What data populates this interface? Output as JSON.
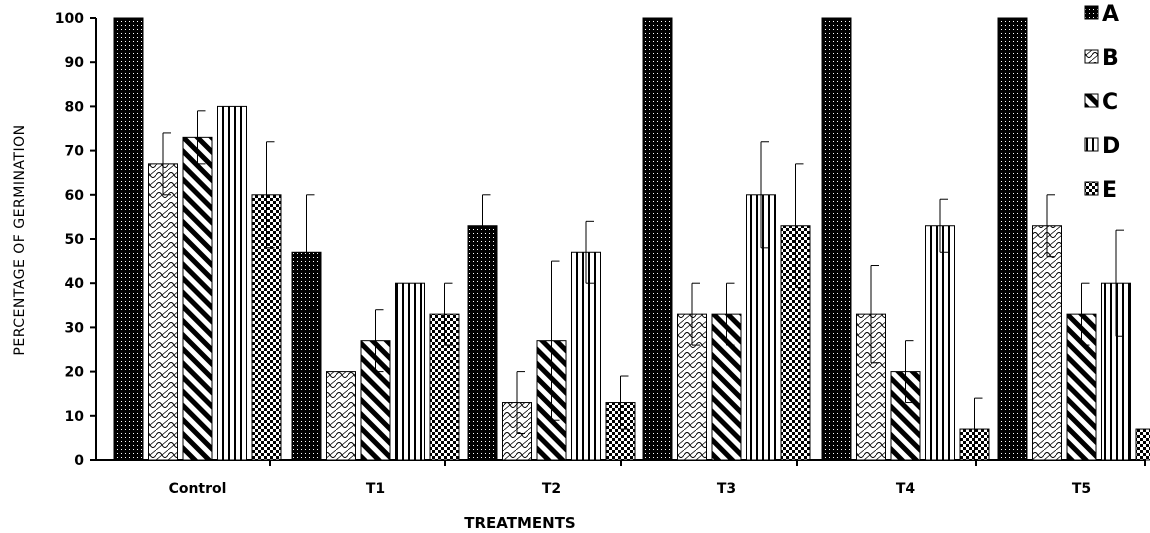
{
  "chart_data": {
    "type": "bar",
    "title": "",
    "xlabel": "TREATMENTS",
    "ylabel": "PERCENTAGE OF GERMINATION",
    "ylim": [
      0,
      100
    ],
    "yticks": [
      0,
      10,
      20,
      30,
      40,
      50,
      60,
      70,
      80,
      90,
      100
    ],
    "categories": [
      "Control",
      "T1",
      "T2",
      "T3",
      "T4",
      "T5"
    ],
    "series": [
      {
        "name": "A",
        "values": [
          100,
          47,
          53,
          100,
          100,
          100
        ],
        "errors": [
          0,
          13,
          7,
          0,
          0,
          0
        ]
      },
      {
        "name": "B",
        "values": [
          67,
          20,
          13,
          33,
          33,
          53
        ],
        "errors": [
          7,
          0,
          7,
          7,
          11,
          7
        ]
      },
      {
        "name": "C",
        "values": [
          73,
          27,
          27,
          33,
          20,
          33
        ],
        "errors": [
          6,
          7,
          18,
          7,
          7,
          7
        ]
      },
      {
        "name": "D",
        "values": [
          80,
          40,
          47,
          60,
          53,
          40
        ],
        "errors": [
          0,
          0,
          7,
          12,
          6,
          12
        ]
      },
      {
        "name": "E",
        "values": [
          60,
          33,
          13,
          53,
          7,
          7
        ],
        "errors": [
          12,
          7,
          6,
          14,
          7,
          6
        ]
      }
    ],
    "grid": false,
    "legend_position": "top-right",
    "bar_style": "black-and-white hatch patterns"
  }
}
